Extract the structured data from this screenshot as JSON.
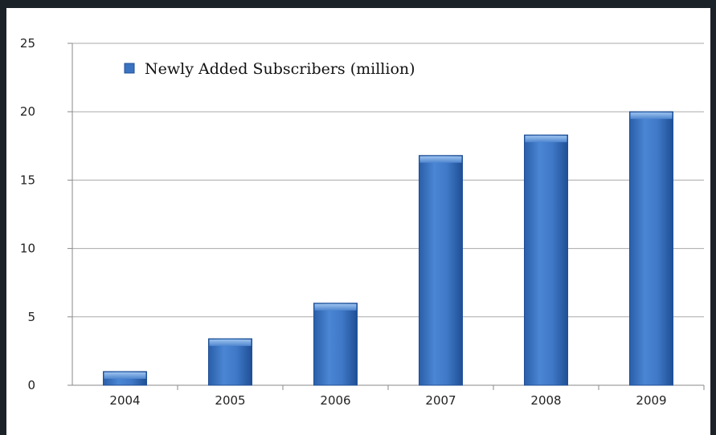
{
  "chart_data": {
    "type": "bar",
    "categories": [
      "2004",
      "2005",
      "2006",
      "2007",
      "2008",
      "2009"
    ],
    "series": [
      {
        "name": "Newly Added Subscribers (million)",
        "values": [
          1.0,
          3.4,
          6.0,
          16.8,
          18.3,
          20.0
        ]
      }
    ],
    "ylim": [
      0,
      25
    ],
    "yticks": [
      "0",
      "5",
      "10",
      "15",
      "20",
      "25"
    ],
    "grid": "horizontal",
    "legend": "top-left",
    "colors": {
      "bar": "#3b73c2",
      "bar_dark": "#1f4f95",
      "bar_top": "#7aaae4",
      "grid": "#aaaaaa",
      "axis": "#888888"
    }
  }
}
